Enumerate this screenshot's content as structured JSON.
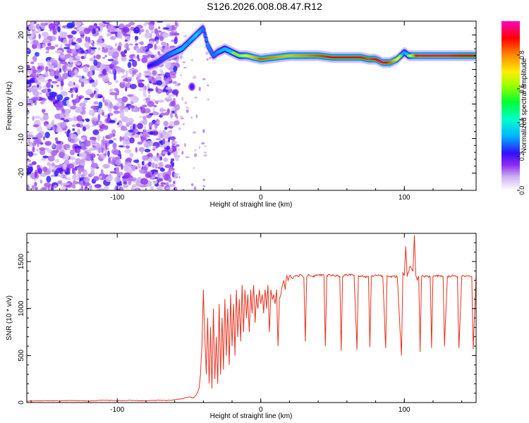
{
  "title": "S126.2026.008.08.47.R12",
  "chart_data": [
    {
      "type": "heatmap",
      "xlabel": "Height of straight line (km)",
      "ylabel": "Frequency (Hz)",
      "xlim": [
        -163,
        150
      ],
      "ylim": [
        -25,
        24
      ],
      "xticks": [
        -100,
        0,
        100
      ],
      "yticks": [
        -20,
        -10,
        0,
        10,
        20
      ],
      "xtick_labels": [
        "-100",
        "0",
        "100"
      ],
      "ytick_labels": [
        "-20",
        "-10",
        "0",
        "10",
        "20"
      ],
      "colorbar": {
        "label": "Normalized spectral amplitude",
        "range": [
          0,
          1
        ],
        "ticks": [
          0.0,
          0.2,
          0.4,
          0.6,
          0.8
        ],
        "tick_labels": [
          "0.0",
          "0.2",
          "0.4",
          "0.6",
          "0.8"
        ],
        "colors": [
          "#ffffff",
          "#d6b8f5",
          "#8f2bf0",
          "#3010ff",
          "#00c8ff",
          "#00ff66",
          "#cfff00",
          "#ff9900",
          "#ff0000",
          "#ff00cc"
        ]
      },
      "ridge": {
        "x": [
          -78,
          -72,
          -65,
          -60,
          -55,
          -50,
          -45,
          -40,
          -37,
          -33,
          -30,
          -25,
          -20,
          -15,
          -10,
          -5,
          0,
          10,
          20,
          30,
          40,
          50,
          60,
          70,
          75,
          80,
          85,
          90,
          95,
          100,
          103,
          110,
          120,
          130,
          140,
          150
        ],
        "freq": [
          11,
          12,
          14,
          15,
          16,
          18,
          20,
          22,
          17,
          14,
          15,
          16,
          15,
          14,
          14,
          13.5,
          13,
          13.5,
          14,
          14,
          14,
          13.5,
          13.5,
          13.5,
          13,
          13,
          12,
          12,
          13,
          15,
          14,
          14,
          14,
          14,
          14,
          14
        ],
        "amplitude": [
          0.35,
          0.4,
          0.45,
          0.5,
          0.55,
          0.5,
          0.6,
          0.45,
          0.5,
          0.45,
          0.5,
          0.55,
          0.6,
          0.6,
          0.7,
          0.75,
          0.85,
          0.8,
          0.75,
          0.8,
          0.85,
          0.9,
          0.9,
          0.9,
          0.85,
          0.9,
          0.95,
          0.85,
          0.7,
          0.5,
          0.6,
          0.95,
          0.95,
          0.95,
          0.9,
          0.9
        ]
      }
    },
    {
      "type": "line",
      "xlabel": "Height of straight line (km)",
      "ylabel": "SNR (10 * v/v)",
      "xlim": [
        -163,
        150
      ],
      "ylim": [
        0,
        1800
      ],
      "xticks": [
        -100,
        0,
        100
      ],
      "yticks": [
        0,
        500,
        1000,
        1500
      ],
      "xtick_labels": [
        "-100",
        "0",
        "100"
      ],
      "ytick_labels": [
        "0",
        "500",
        "1000",
        "1500"
      ],
      "color": "#e8301c",
      "series": [
        {
          "name": "SNR",
          "x": [
            -163,
            -150,
            -140,
            -130,
            -120,
            -110,
            -100,
            -90,
            -80,
            -70,
            -65,
            -60,
            -55,
            -50,
            -47,
            -45,
            -43,
            -42,
            -41,
            -40,
            -39,
            -38,
            -37,
            -36,
            -35,
            -34,
            -33,
            -32,
            -31,
            -30,
            -29,
            -28,
            -27,
            -26,
            -25,
            -24,
            -23,
            -22,
            -21,
            -20,
            -19,
            -18,
            -17,
            -16,
            -15,
            -14,
            -13,
            -12,
            -11,
            -10,
            -9,
            -8,
            -7,
            -6,
            -5,
            -4,
            -3,
            -2,
            -1,
            0,
            1,
            2,
            3,
            4,
            5,
            6,
            7,
            8,
            9,
            10,
            11,
            12,
            13,
            14,
            15,
            16,
            17,
            18,
            19,
            20,
            22,
            24,
            26,
            28,
            30,
            31,
            32,
            33,
            34,
            36,
            40,
            44,
            45,
            46,
            50,
            55,
            56,
            57,
            60,
            65,
            67,
            68,
            70,
            75,
            76,
            77,
            80,
            85,
            87,
            88,
            90,
            95,
            98,
            99,
            100,
            101,
            102,
            104,
            106,
            107,
            108,
            109,
            110,
            111,
            112,
            115,
            118,
            119,
            120,
            125,
            127,
            128,
            130,
            135,
            137,
            138,
            140,
            145,
            147,
            148,
            150
          ],
          "values": [
            15,
            20,
            18,
            22,
            16,
            25,
            20,
            22,
            18,
            25,
            20,
            30,
            40,
            60,
            50,
            80,
            150,
            300,
            600,
            1200,
            700,
            300,
            900,
            200,
            800,
            150,
            1000,
            250,
            700,
            200,
            1050,
            300,
            900,
            350,
            1100,
            500,
            1000,
            400,
            1150,
            600,
            1050,
            500,
            1200,
            700,
            1100,
            650,
            1250,
            750,
            1200,
            900,
            1150,
            750,
            1200,
            950,
            1250,
            850,
            1150,
            1000,
            1200,
            1050,
            1150,
            950,
            1200,
            1000,
            1250,
            750,
            1200,
            1100,
            1150,
            1050,
            1200,
            600,
            1100,
            1150,
            1250,
            1300,
            1200,
            1350,
            1300,
            1350,
            1320,
            1350,
            1340,
            1360,
            1330,
            650,
            1340,
            1360,
            1350,
            1340,
            1360,
            1350,
            600,
            1350,
            1360,
            1340,
            550,
            1340,
            1360,
            1350,
            560,
            1350,
            1340,
            1340,
            590,
            1340,
            1360,
            1340,
            580,
            1350,
            1340,
            1340,
            500,
            1380,
            1350,
            1660,
            1340,
            1450,
            1400,
            1780,
            1350,
            1300,
            1340,
            540,
            1340,
            1350,
            1340,
            580,
            1340,
            1350,
            1340,
            600,
            1340,
            1350,
            1340,
            580,
            1340,
            1350,
            1340,
            570,
            1360
          ]
        }
      ]
    }
  ]
}
